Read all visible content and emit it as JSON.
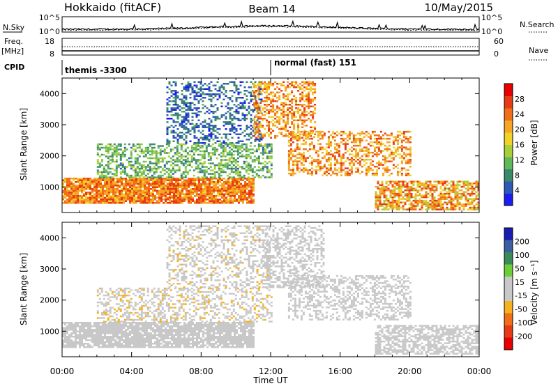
{
  "header": {
    "station": "Hokkaido (fitACF)",
    "beam": "Beam 14",
    "date": "10/May/2015"
  },
  "top_panel": {
    "left_label": "N.Sky",
    "right_label": "N.Search",
    "left_ticks": [
      "10^5",
      "10^0"
    ],
    "right_ticks": [
      "10^5",
      "10^0"
    ],
    "freq_label_1": "Freq.",
    "freq_label_2": "[MHz]",
    "freq_ticks": [
      "18",
      "8"
    ],
    "nave_label": "Nave",
    "nave_ticks": [
      "60",
      "0"
    ],
    "cpid_label": "CPID",
    "cpid_segments": [
      {
        "label": "themis -3300",
        "start_hour": 0
      },
      {
        "label": "normal (fast) 151",
        "start_hour": 12
      }
    ]
  },
  "time_axis": {
    "label": "Time UT",
    "ticks": [
      "00:00",
      "04:00",
      "08:00",
      "12:00",
      "16:00",
      "20:00",
      "00:00"
    ],
    "range_hours": [
      0,
      24
    ]
  },
  "chart_data": [
    {
      "type": "heatmap",
      "quantity": "power",
      "ylabel": "Slant Range [km]",
      "yticks": [
        "1000",
        "2000",
        "3000",
        "4000"
      ],
      "ylim": [
        180,
        4500
      ],
      "colorbar_label": "Power [dB]",
      "colorbar_ticks": [
        "4",
        "8",
        "12",
        "16",
        "20",
        "24",
        "28"
      ],
      "colorbar_range": [
        0,
        32
      ],
      "colors": [
        "#1c1cf0",
        "#2e59b4",
        "#3a8a6a",
        "#5fb85a",
        "#a8cf38",
        "#f0d22a",
        "#f5a623",
        "#f07018",
        "#e83a14",
        "#e80000"
      ],
      "regions": [
        {
          "desc": "near-range band",
          "t0": 0.0,
          "t1": 11.0,
          "r0": 500,
          "r1": 1300,
          "p0": 18,
          "p1": 28,
          "density": 0.9
        },
        {
          "desc": "sub-auroral band",
          "t0": 2.0,
          "t1": 12.0,
          "r0": 1300,
          "r1": 2400,
          "p0": 6,
          "p1": 16,
          "density": 0.5
        },
        {
          "desc": "morning far range",
          "t0": 6.0,
          "t1": 11.5,
          "r0": 2400,
          "r1": 4400,
          "p0": 2,
          "p1": 10,
          "density": 0.4
        },
        {
          "desc": "noon far range",
          "t0": 11.0,
          "t1": 14.5,
          "r0": 2600,
          "r1": 4400,
          "p0": 16,
          "p1": 28,
          "density": 0.5
        },
        {
          "desc": "afternoon streaks",
          "t0": 13.0,
          "t1": 20.0,
          "r0": 1400,
          "r1": 2800,
          "p0": 16,
          "p1": 28,
          "density": 0.45
        },
        {
          "desc": "evening near range",
          "t0": 18.0,
          "t1": 24.0,
          "r0": 300,
          "r1": 1200,
          "p0": 14,
          "p1": 28,
          "density": 0.7
        }
      ]
    },
    {
      "type": "heatmap",
      "quantity": "velocity",
      "ylabel": "Slant Range [km]",
      "yticks": [
        "1000",
        "2000",
        "3000",
        "4000"
      ],
      "ylim": [
        180,
        4500
      ],
      "colorbar_label": "Velocity [m s⁻¹]",
      "colorbar_ticks": [
        "200",
        "100",
        "50",
        "15",
        "-15",
        "-50",
        "-100",
        "-200"
      ],
      "colorbar_range": [
        -250,
        250
      ],
      "colors": [
        "#1c1cb4",
        "#3b5fa0",
        "#3a8a5a",
        "#6ccf3a",
        "#c8c8c8",
        "#c8c8c8",
        "#f5b21e",
        "#f07018",
        "#e83a14",
        "#e80000"
      ],
      "regions": [
        {
          "desc": "near-range ground scatter",
          "t0": 0.0,
          "t1": 11.0,
          "r0": 500,
          "r1": 1300,
          "v0": -15,
          "v1": 15,
          "density": 0.85
        },
        {
          "desc": "sub-auroral band",
          "t0": 2.0,
          "t1": 12.0,
          "r0": 1300,
          "r1": 2400,
          "v0": -60,
          "v1": -15,
          "density": 0.4
        },
        {
          "desc": "morning far range",
          "t0": 6.0,
          "t1": 12.0,
          "r0": 2400,
          "r1": 4400,
          "v0": -60,
          "v1": 10,
          "density": 0.35
        },
        {
          "desc": "noon far range",
          "t0": 11.5,
          "t1": 15.0,
          "r0": 2400,
          "r1": 4400,
          "v0": -20,
          "v1": 15,
          "density": 0.45
        },
        {
          "desc": "afternoon gray band",
          "t0": 13.0,
          "t1": 20.0,
          "r0": 1400,
          "r1": 2800,
          "v0": -15,
          "v1": 15,
          "density": 0.45
        },
        {
          "desc": "evening near range",
          "t0": 18.0,
          "t1": 24.0,
          "r0": 300,
          "r1": 1200,
          "v0": -15,
          "v1": 15,
          "density": 0.65
        }
      ]
    }
  ]
}
